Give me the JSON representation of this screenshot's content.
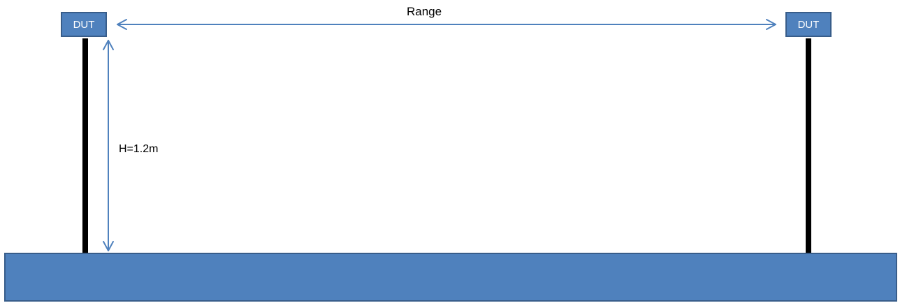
{
  "diagram": {
    "left_device": {
      "label": "DUT"
    },
    "right_device": {
      "label": "DUT"
    },
    "range_label": "Range",
    "height_label": "H=1.2m",
    "colors": {
      "box_fill": "#4f81bd",
      "box_border": "#385d8a",
      "arrow": "#4f81bd",
      "pole": "#000000",
      "ground": "#4f81bd"
    }
  }
}
